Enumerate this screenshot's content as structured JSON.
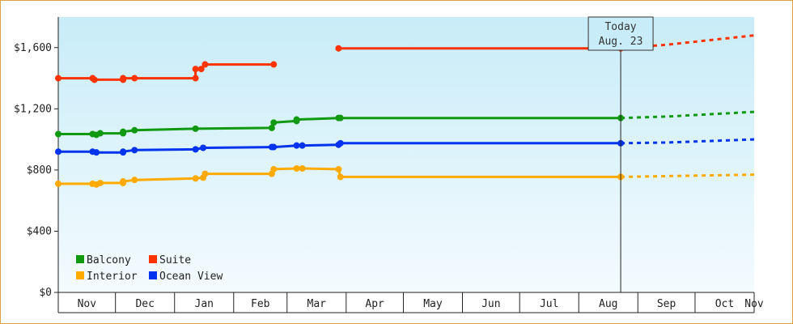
{
  "chart_data": {
    "type": "line",
    "title": "",
    "xlabel": "",
    "ylabel": "",
    "ylim": [
      0,
      1800
    ],
    "y_ticks": [
      "$0",
      "$400",
      "$800",
      "$1,200",
      "$1,600"
    ],
    "y_tick_values": [
      0,
      400,
      800,
      1200,
      1600
    ],
    "months": [
      "Nov",
      "Dec",
      "Jan",
      "Feb",
      "Mar",
      "Apr",
      "May",
      "Jun",
      "Jul",
      "Aug",
      "Sep",
      "Oct",
      "Nov"
    ],
    "x_range_days": [
      0,
      365
    ],
    "grid": false,
    "legend_position": "bottom-left",
    "today": {
      "line1": "Today",
      "line2": "Aug. 23",
      "day": 295
    },
    "series": [
      {
        "name": "Balcony",
        "color": "#119911",
        "points": [
          [
            0,
            1035
          ],
          [
            18,
            1035
          ],
          [
            20,
            1030
          ],
          [
            22,
            1040
          ],
          [
            34,
            1040
          ],
          [
            34,
            1050
          ],
          [
            40,
            1060
          ],
          [
            72,
            1070
          ],
          [
            112,
            1075
          ],
          [
            113,
            1110
          ],
          [
            125,
            1120
          ],
          [
            125,
            1130
          ],
          [
            147,
            1140
          ],
          [
            148,
            1140
          ],
          [
            295,
            1140
          ]
        ],
        "forecast": [
          [
            295,
            1140
          ],
          [
            320,
            1150
          ],
          [
            365,
            1180
          ]
        ]
      },
      {
        "name": "Suite",
        "color": "#ff3300",
        "points": [
          [
            0,
            1400
          ],
          [
            18,
            1400
          ],
          [
            19,
            1390
          ],
          [
            34,
            1390
          ],
          [
            34,
            1400
          ],
          [
            40,
            1400
          ],
          [
            72,
            1400
          ],
          [
            72,
            1460
          ],
          [
            75,
            1460
          ],
          [
            77,
            1490
          ],
          [
            113,
            1490
          ]
        ],
        "segment2": [
          [
            147,
            1595
          ],
          [
            295,
            1595
          ]
        ],
        "forecast": [
          [
            295,
            1595
          ],
          [
            320,
            1620
          ],
          [
            365,
            1680
          ]
        ]
      },
      {
        "name": "Interior",
        "color": "#ffaa00",
        "points": [
          [
            0,
            710
          ],
          [
            18,
            710
          ],
          [
            20,
            705
          ],
          [
            22,
            715
          ],
          [
            34,
            715
          ],
          [
            34,
            725
          ],
          [
            40,
            735
          ],
          [
            72,
            745
          ],
          [
            76,
            750
          ],
          [
            77,
            775
          ],
          [
            112,
            775
          ],
          [
            113,
            805
          ],
          [
            125,
            810
          ],
          [
            128,
            810
          ],
          [
            147,
            805
          ],
          [
            148,
            755
          ],
          [
            295,
            755
          ]
        ],
        "forecast": [
          [
            295,
            755
          ],
          [
            320,
            760
          ],
          [
            365,
            770
          ]
        ]
      },
      {
        "name": "Ocean View",
        "color": "#0033ee",
        "points": [
          [
            0,
            920
          ],
          [
            18,
            920
          ],
          [
            20,
            915
          ],
          [
            34,
            915
          ],
          [
            34,
            920
          ],
          [
            40,
            930
          ],
          [
            72,
            935
          ],
          [
            76,
            945
          ],
          [
            112,
            950
          ],
          [
            113,
            950
          ],
          [
            125,
            960
          ],
          [
            128,
            960
          ],
          [
            147,
            965
          ],
          [
            148,
            975
          ],
          [
            295,
            975
          ]
        ],
        "forecast": [
          [
            295,
            975
          ],
          [
            320,
            980
          ],
          [
            365,
            1000
          ]
        ]
      }
    ],
    "legend": [
      {
        "label": "Balcony",
        "color": "#119911"
      },
      {
        "label": "Suite",
        "color": "#ff3300"
      },
      {
        "label": "Interior",
        "color": "#ffaa00"
      },
      {
        "label": "Ocean View",
        "color": "#0033ee"
      }
    ]
  }
}
